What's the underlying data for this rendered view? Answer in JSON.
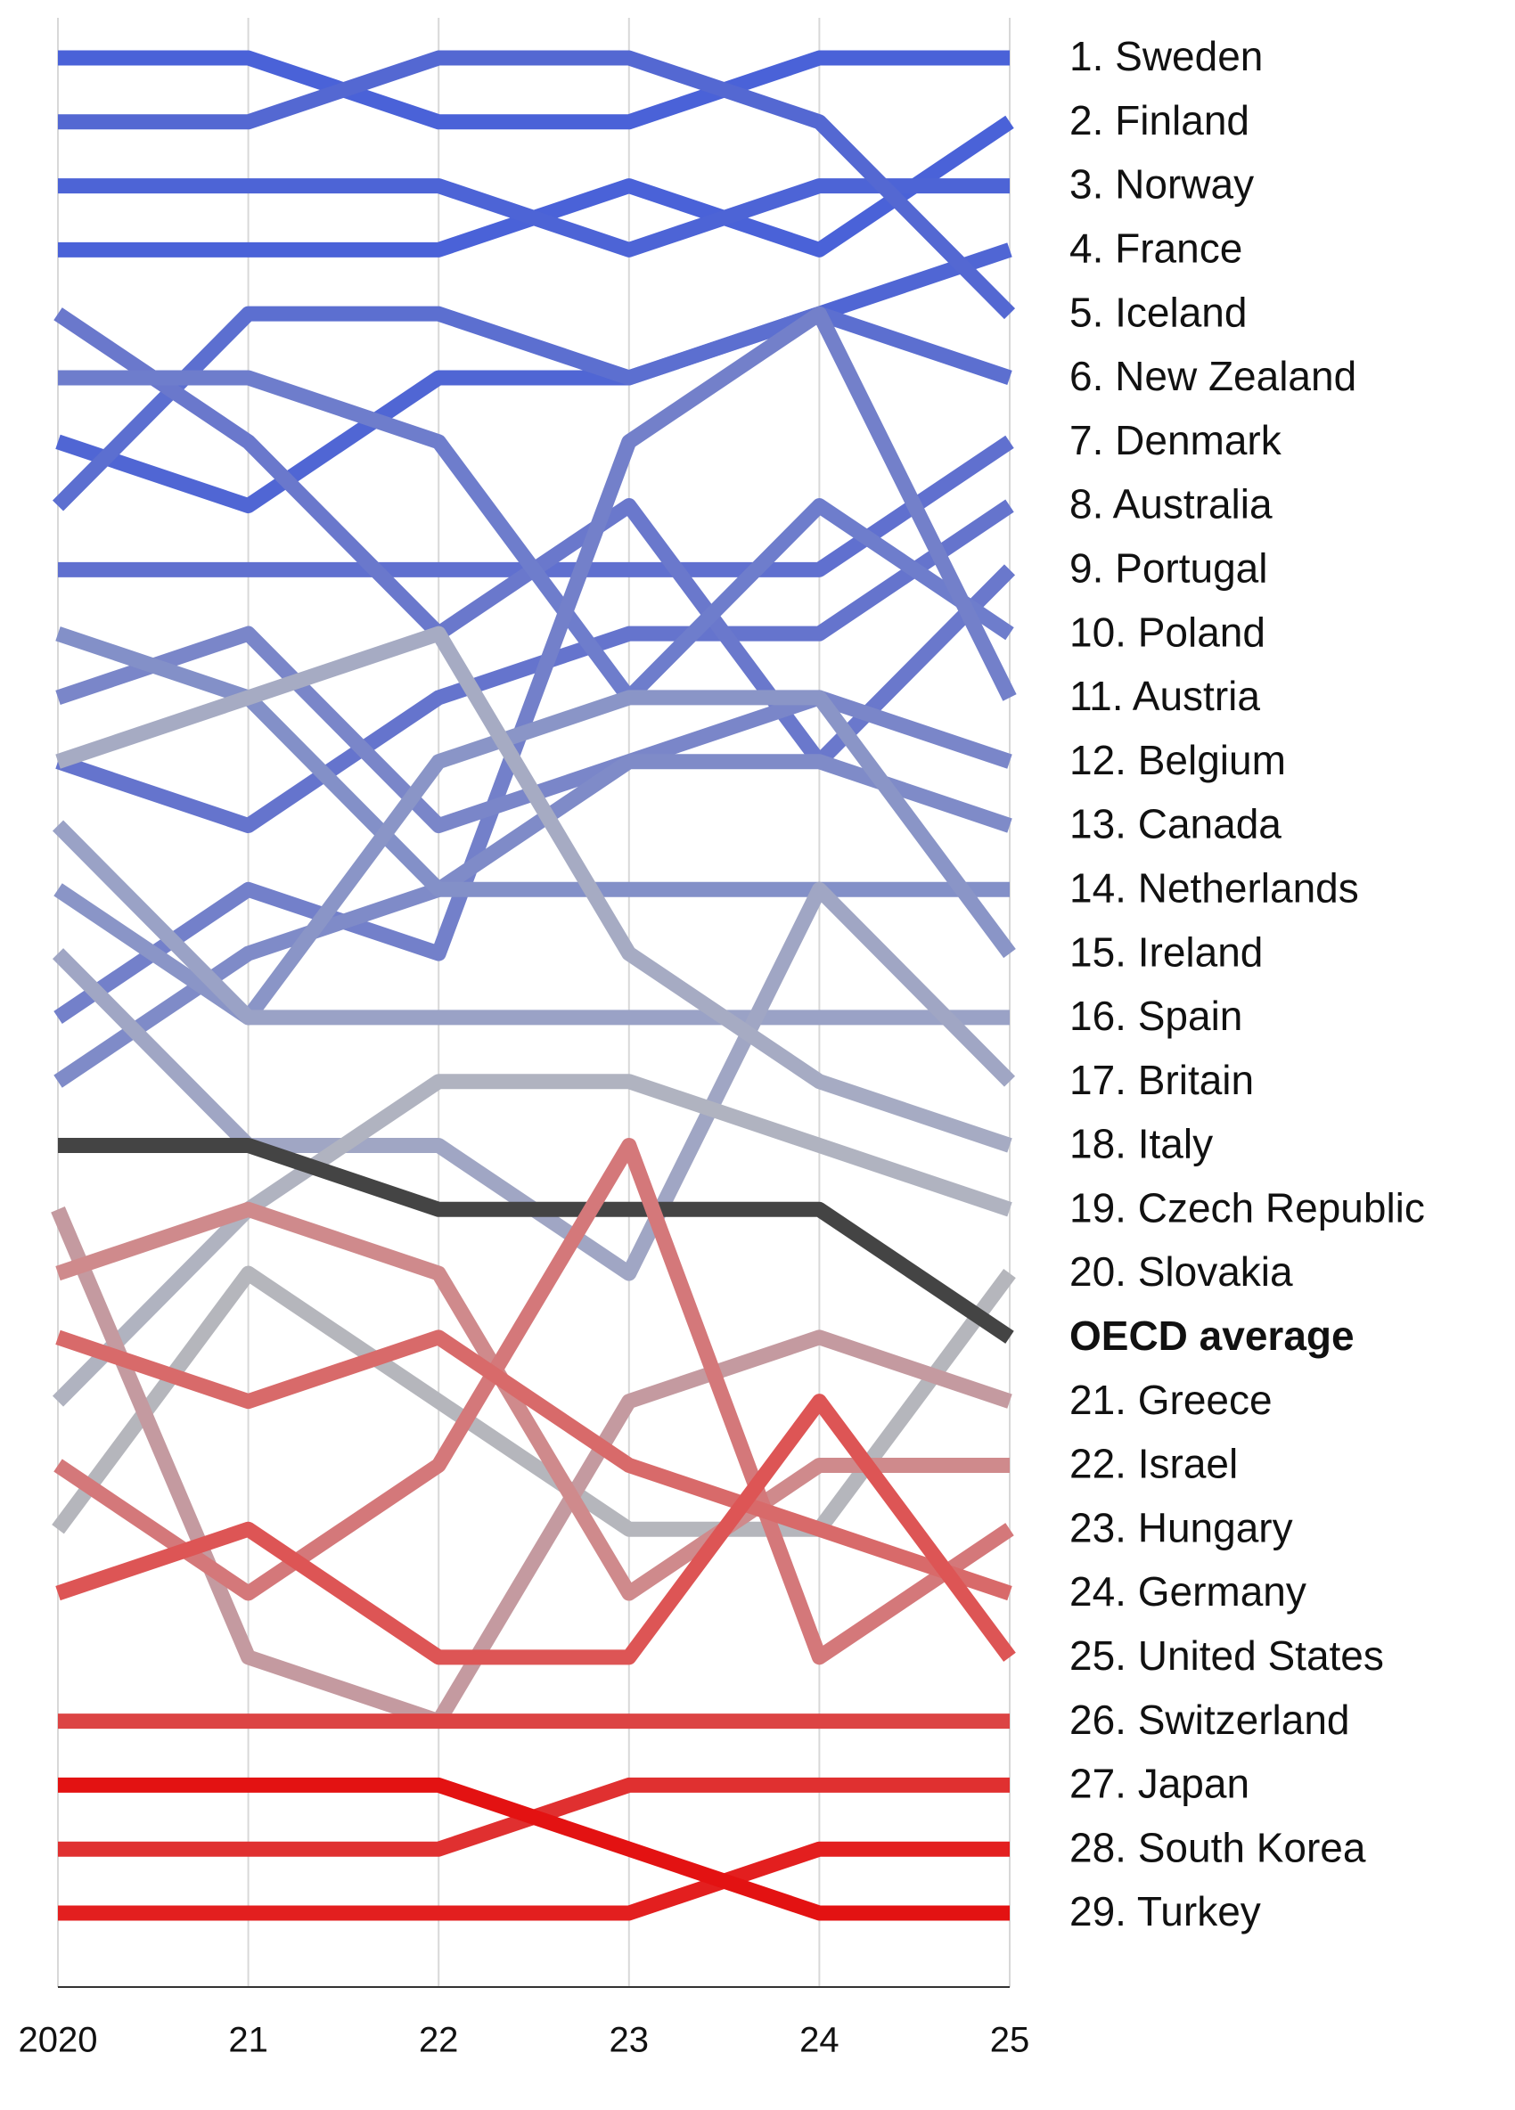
{
  "chart_data": {
    "type": "bump",
    "categories": [
      "2020",
      "21",
      "22",
      "23",
      "24",
      "25"
    ],
    "ylim": [
      1,
      30
    ],
    "y_inverted": true,
    "grid": true,
    "series": [
      {
        "name": "1. Sweden",
        "color": "#4a62d8",
        "values": [
          1,
          1,
          2,
          2,
          1,
          1
        ]
      },
      {
        "name": "2. Finland",
        "color": "#4a62d8",
        "values": [
          4,
          4,
          4,
          3,
          4,
          2
        ]
      },
      {
        "name": "3. Norway",
        "color": "#4d64d6",
        "values": [
          3,
          3,
          3,
          4,
          3,
          3
        ]
      },
      {
        "name": "4. France",
        "color": "#5066d4",
        "values": [
          7,
          8,
          6,
          6,
          5,
          4
        ]
      },
      {
        "name": "5. Iceland",
        "color": "#5468d2",
        "values": [
          2,
          2,
          1,
          1,
          2,
          5
        ]
      },
      {
        "name": "6. New Zealand",
        "color": "#5c6fd0",
        "values": [
          8,
          5,
          5,
          6,
          5,
          6
        ]
      },
      {
        "name": "7. Denmark",
        "color": "#6070cf",
        "values": [
          9,
          9,
          9,
          9,
          9,
          7
        ]
      },
      {
        "name": "8. Australia",
        "color": "#6574cd",
        "values": [
          12,
          13,
          11,
          10,
          10,
          8
        ]
      },
      {
        "name": "9. Portugal",
        "color": "#6a78cc",
        "values": [
          5,
          7,
          10,
          8,
          12,
          9
        ]
      },
      {
        "name": "10. Poland",
        "color": "#6e7dcc",
        "values": [
          6,
          6,
          7,
          11,
          8,
          10
        ]
      },
      {
        "name": "11. Austria",
        "color": "#7380ca",
        "values": [
          16,
          14,
          15,
          7,
          5,
          11
        ]
      },
      {
        "name": "12. Belgium",
        "color": "#7a86c9",
        "values": [
          11,
          10,
          13,
          12,
          11,
          12
        ]
      },
      {
        "name": "13. Canada",
        "color": "#7f8bc8",
        "values": [
          17,
          15,
          14,
          12,
          12,
          13
        ]
      },
      {
        "name": "14. Netherlands",
        "color": "#8390c8",
        "values": [
          10,
          11,
          14,
          14,
          14,
          14
        ]
      },
      {
        "name": "15. Ireland",
        "color": "#8a95c7",
        "values": [
          14,
          16,
          12,
          11,
          11,
          15
        ]
      },
      {
        "name": "16. Spain",
        "color": "#9aa2c6",
        "values": [
          13,
          16,
          16,
          16,
          16,
          16
        ]
      },
      {
        "name": "17. Britain",
        "color": "#a0a6c4",
        "values": [
          15,
          18,
          18,
          20,
          14,
          17
        ]
      },
      {
        "name": "18. Italy",
        "color": "#a6abc3",
        "values": [
          12,
          11,
          10,
          15,
          17,
          18
        ]
      },
      {
        "name": "19. Czech Republic",
        "color": "#b0b3c0",
        "values": [
          22,
          19,
          17,
          17,
          18,
          19
        ]
      },
      {
        "name": "20. Slovakia",
        "color": "#b5b6bc",
        "values": [
          24,
          20,
          22,
          24,
          24,
          20
        ]
      },
      {
        "name": "OECD average",
        "color": "#444444",
        "bold": true,
        "values": [
          18,
          18,
          19,
          19,
          19,
          21
        ]
      },
      {
        "name": "21. Greece",
        "color": "#c49aa0",
        "values": [
          19,
          26,
          27,
          22,
          21,
          22
        ]
      },
      {
        "name": "22. Israel",
        "color": "#cf8a8c",
        "values": [
          20,
          19,
          20,
          25,
          23,
          23
        ]
      },
      {
        "name": "23. Hungary",
        "color": "#d4787a",
        "values": [
          23,
          25,
          23,
          18,
          26,
          24
        ]
      },
      {
        "name": "24. Germany",
        "color": "#d86a6a",
        "values": [
          21,
          22,
          21,
          23,
          24,
          25
        ]
      },
      {
        "name": "25. United States",
        "color": "#dd5555",
        "values": [
          25,
          24,
          26,
          26,
          22,
          26
        ]
      },
      {
        "name": "26. Switzerland",
        "color": "#dc4444",
        "values": [
          27,
          27,
          27,
          27,
          27,
          27
        ]
      },
      {
        "name": "27. Japan",
        "color": "#e03030",
        "values": [
          29,
          29,
          29,
          28,
          28,
          28
        ]
      },
      {
        "name": "28. South Korea",
        "color": "#e31f1f",
        "values": [
          30,
          30,
          30,
          30,
          29,
          29
        ]
      },
      {
        "name": "29. Turkey",
        "color": "#e31212",
        "values": [
          28,
          28,
          28,
          29,
          30,
          30
        ]
      }
    ]
  }
}
